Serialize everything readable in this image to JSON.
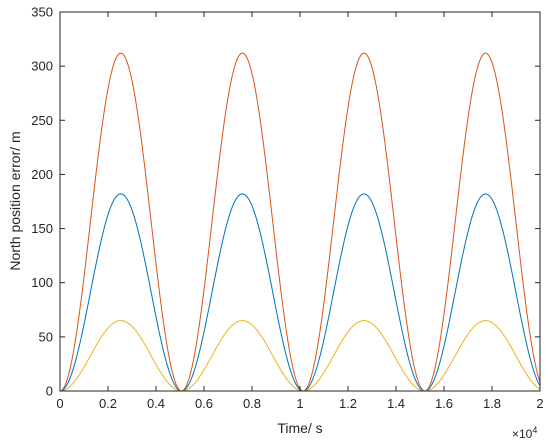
{
  "chart_data": {
    "type": "line",
    "title": "",
    "xlabel": "Time/ s",
    "ylabel": "North position error/ m",
    "x_exponent_label": "×10",
    "x_exponent": "4",
    "xlim": [
      0,
      20000
    ],
    "ylim": [
      0,
      350
    ],
    "x_ticks": [
      0,
      2000,
      4000,
      6000,
      8000,
      10000,
      12000,
      14000,
      16000,
      18000,
      20000
    ],
    "x_tick_labels": [
      "0",
      "0.2",
      "0.4",
      "0.6",
      "0.8",
      "1",
      "1.2",
      "1.4",
      "1.6",
      "1.8",
      "2"
    ],
    "y_ticks": [
      0,
      50,
      100,
      150,
      200,
      250,
      300,
      350
    ],
    "y_tick_labels": [
      "0",
      "50",
      "100",
      "150",
      "200",
      "250",
      "300",
      "350"
    ],
    "grid": false,
    "legend": "none",
    "period_s": 5066,
    "series": [
      {
        "color": "#D95319",
        "peak": 312,
        "shape": "1-cos"
      },
      {
        "color": "#0072BD",
        "peak": 182,
        "shape": "1-cos"
      },
      {
        "color": "#EDB120",
        "peak": 65,
        "shape": "1-cos"
      }
    ]
  }
}
